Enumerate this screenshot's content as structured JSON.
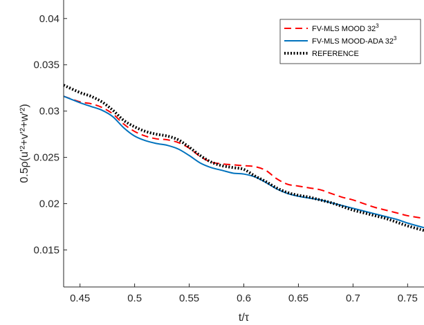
{
  "chart_data": {
    "type": "line",
    "xlabel": "t/τ",
    "ylabel": "0.5ρ(u'²+v'²+w'²)",
    "xlim": [
      0.435,
      0.765
    ],
    "ylim": [
      0.011,
      0.042
    ],
    "xticks": [
      "0.45",
      "0.5",
      "0.55",
      "0.6",
      "0.65",
      "0.7",
      "0.75"
    ],
    "yticks": [
      "0.015",
      "0.02",
      "0.025",
      "0.03",
      "0.035",
      "0.04"
    ],
    "grid": false,
    "legend_position": "top-right",
    "series": [
      {
        "name": "FV-MLS MOOD 32",
        "name_sup": "3",
        "color": "#ff0000",
        "dash": "dashed",
        "x": [
          0.435,
          0.45,
          0.46,
          0.47,
          0.48,
          0.49,
          0.5,
          0.51,
          0.52,
          0.53,
          0.54,
          0.55,
          0.56,
          0.57,
          0.58,
          0.59,
          0.6,
          0.61,
          0.62,
          0.63,
          0.64,
          0.65,
          0.66,
          0.67,
          0.68,
          0.69,
          0.7,
          0.71,
          0.72,
          0.73,
          0.74,
          0.75,
          0.765
        ],
        "y": [
          0.0316,
          0.031,
          0.0308,
          0.0304,
          0.0297,
          0.0286,
          0.0278,
          0.0273,
          0.027,
          0.0269,
          0.0266,
          0.026,
          0.0251,
          0.0245,
          0.0243,
          0.0242,
          0.0241,
          0.024,
          0.0236,
          0.0227,
          0.0221,
          0.0219,
          0.0217,
          0.0215,
          0.0211,
          0.0207,
          0.0204,
          0.02,
          0.0196,
          0.0193,
          0.019,
          0.0187,
          0.0184
        ]
      },
      {
        "name": "FV-MLS MOOD-ADA 32",
        "name_sup": "3",
        "color": "#0072bd",
        "dash": "solid",
        "x": [
          0.435,
          0.45,
          0.46,
          0.47,
          0.48,
          0.49,
          0.5,
          0.51,
          0.52,
          0.53,
          0.54,
          0.55,
          0.56,
          0.57,
          0.58,
          0.59,
          0.6,
          0.61,
          0.62,
          0.63,
          0.64,
          0.65,
          0.66,
          0.67,
          0.68,
          0.69,
          0.7,
          0.71,
          0.72,
          0.73,
          0.74,
          0.75,
          0.765
        ],
        "y": [
          0.0316,
          0.0309,
          0.0305,
          0.0301,
          0.0294,
          0.0282,
          0.0273,
          0.0268,
          0.0265,
          0.0263,
          0.0259,
          0.0252,
          0.0244,
          0.0239,
          0.0236,
          0.0233,
          0.0232,
          0.0229,
          0.0223,
          0.0216,
          0.0211,
          0.0208,
          0.0206,
          0.0204,
          0.0201,
          0.0198,
          0.0195,
          0.0192,
          0.0189,
          0.0186,
          0.0183,
          0.0179,
          0.0174
        ]
      },
      {
        "name": "REFERENCE",
        "color": "#000000",
        "dash": "dotted",
        "x": [
          0.435,
          0.45,
          0.46,
          0.47,
          0.48,
          0.49,
          0.5,
          0.51,
          0.52,
          0.53,
          0.54,
          0.55,
          0.56,
          0.57,
          0.58,
          0.59,
          0.6,
          0.61,
          0.62,
          0.63,
          0.64,
          0.65,
          0.66,
          0.67,
          0.68,
          0.69,
          0.7,
          0.71,
          0.72,
          0.73,
          0.74,
          0.75,
          0.765
        ],
        "y": [
          0.0328,
          0.032,
          0.0316,
          0.031,
          0.0301,
          0.029,
          0.0283,
          0.0278,
          0.0275,
          0.0273,
          0.0269,
          0.0261,
          0.0252,
          0.0245,
          0.0241,
          0.0239,
          0.0237,
          0.023,
          0.0224,
          0.0217,
          0.0212,
          0.0209,
          0.0207,
          0.0204,
          0.0201,
          0.0197,
          0.0193,
          0.019,
          0.0187,
          0.0184,
          0.018,
          0.0176,
          0.0171
        ]
      }
    ]
  }
}
